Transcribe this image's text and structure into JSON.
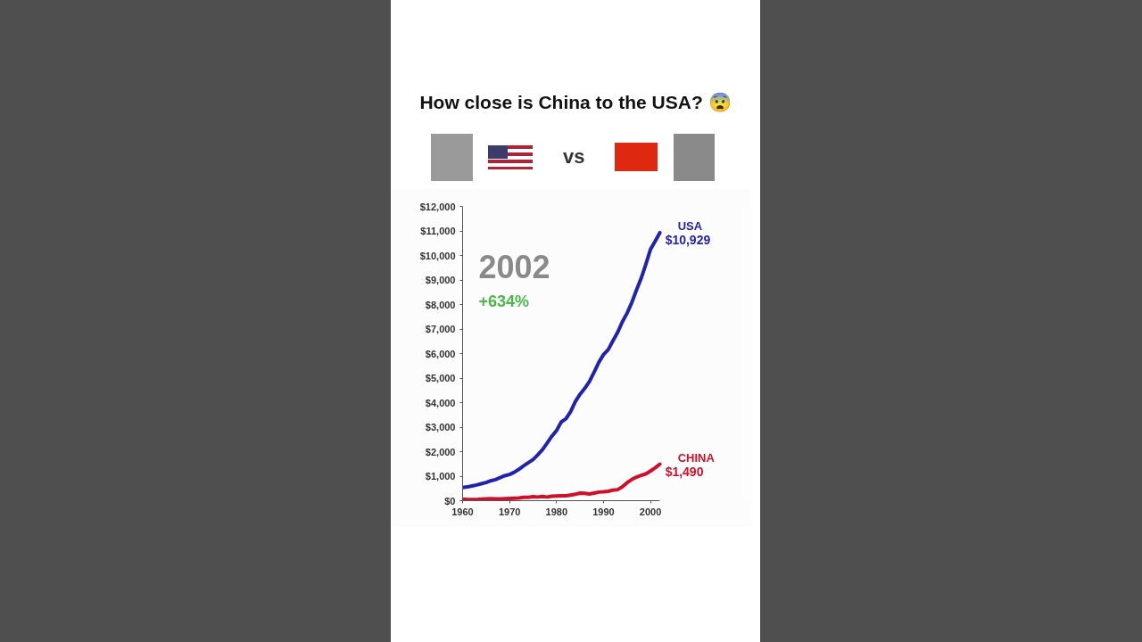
{
  "chart_data": {
    "type": "line",
    "title": "How close is China to the USA? 😨",
    "x": [
      1960,
      1961,
      1962,
      1963,
      1964,
      1965,
      1966,
      1967,
      1968,
      1969,
      1970,
      1971,
      1972,
      1973,
      1974,
      1975,
      1976,
      1977,
      1978,
      1979,
      1980,
      1981,
      1982,
      1983,
      1984,
      1985,
      1986,
      1987,
      1988,
      1989,
      1990,
      1991,
      1992,
      1993,
      1994,
      1995,
      1996,
      1997,
      1998,
      1999,
      2000,
      2001,
      2002
    ],
    "series": [
      {
        "name": "USA",
        "color": "#2222b0",
        "values": [
          540,
          560,
          600,
          640,
          690,
          740,
          810,
          860,
          940,
          1020,
          1070,
          1160,
          1280,
          1420,
          1550,
          1680,
          1870,
          2080,
          2350,
          2630,
          2860,
          3210,
          3340,
          3630,
          4040,
          4340,
          4580,
          4860,
          5240,
          5640,
          5960,
          6160,
          6520,
          6860,
          7290,
          7640,
          8070,
          8580,
          9060,
          9630,
          10250,
          10580,
          10929
        ],
        "value_labels": [
          null,
          null,
          null,
          null,
          null,
          null,
          null,
          null,
          null,
          null,
          null,
          null,
          null,
          null,
          null,
          null,
          null,
          null,
          null,
          null,
          null,
          null,
          null,
          null,
          null,
          null,
          null,
          null,
          null,
          null,
          null,
          null,
          null,
          null,
          null,
          null,
          null,
          null,
          null,
          null,
          null,
          null,
          "$10,929"
        ]
      },
      {
        "name": "CHINA",
        "color": "#d0102a",
        "values": [
          60,
          50,
          50,
          50,
          60,
          70,
          80,
          70,
          70,
          80,
          90,
          100,
          110,
          140,
          140,
          160,
          150,
          170,
          150,
          180,
          190,
          200,
          200,
          230,
          260,
          310,
          300,
          270,
          310,
          350,
          360,
          380,
          430,
          450,
          560,
          730,
          860,
          960,
          1030,
          1090,
          1210,
          1340,
          1490
        ],
        "value_labels": [
          null,
          null,
          null,
          null,
          null,
          null,
          null,
          null,
          null,
          null,
          null,
          null,
          null,
          null,
          null,
          null,
          null,
          null,
          null,
          null,
          null,
          null,
          null,
          null,
          null,
          null,
          null,
          null,
          null,
          null,
          null,
          null,
          null,
          null,
          null,
          null,
          null,
          null,
          null,
          null,
          null,
          null,
          "$1,490"
        ]
      }
    ],
    "xlim": [
      1960,
      2002
    ],
    "xticks": [
      1960,
      1970,
      1980,
      1990,
      2000
    ],
    "ylim": [
      0,
      12000
    ],
    "yticks": [
      {
        "value": 0,
        "label": "$0"
      },
      {
        "value": 1000,
        "label": "$1,000"
      },
      {
        "value": 2000,
        "label": "$2,000"
      },
      {
        "value": 3000,
        "label": "$3,000"
      },
      {
        "value": 4000,
        "label": "$4,000"
      },
      {
        "value": 5000,
        "label": "$5,000"
      },
      {
        "value": 6000,
        "label": "$6,000"
      },
      {
        "value": 7000,
        "label": "$7,000"
      },
      {
        "value": 8000,
        "label": "$8,000"
      },
      {
        "value": 9000,
        "label": "$9,000"
      },
      {
        "value": 10000,
        "label": "$10,000"
      },
      {
        "value": 11000,
        "label": "$11,000"
      },
      {
        "value": 12000,
        "label": "$12,000"
      }
    ],
    "annotations": [
      "vs",
      "2002",
      "+634%"
    ],
    "grid": false,
    "marker": "none",
    "line_style": "solid"
  }
}
